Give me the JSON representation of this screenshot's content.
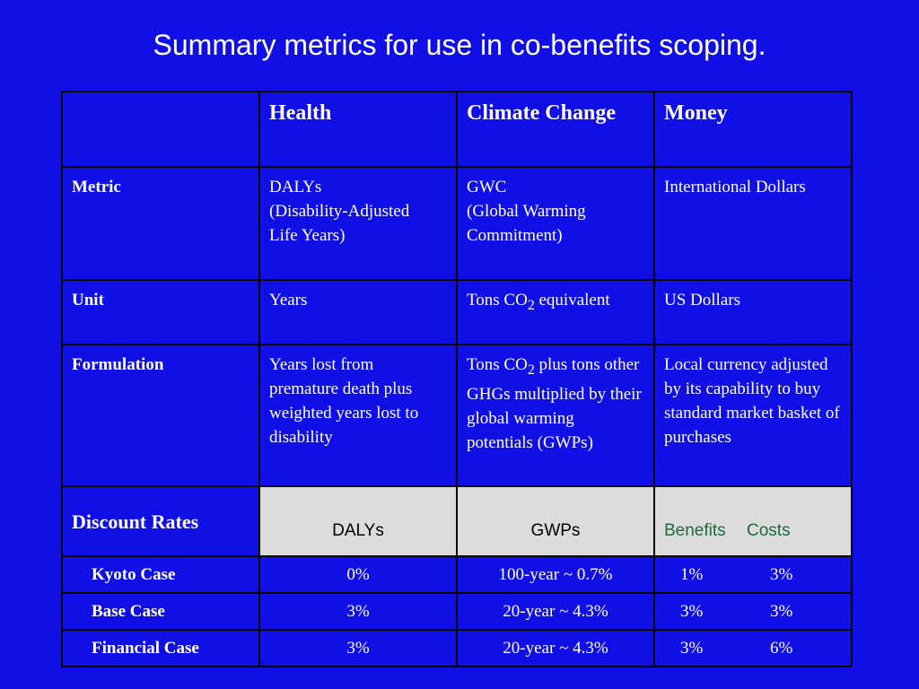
{
  "title": "Summary metrics for use in co-benefits scoping.",
  "table": {
    "headers": [
      "",
      "Health",
      "Climate Change",
      "Money"
    ],
    "metric": {
      "label": "Metric",
      "health": [
        "DALYs",
        "(Disability-Adjusted",
        "Life Years)"
      ],
      "climate": [
        "GWC",
        "(Global Warming",
        "Commitment)"
      ],
      "money": "International Dollars"
    },
    "unit": {
      "label": "Unit",
      "health": "Years",
      "climate_prefix": "Tons CO",
      "climate_sub": "2",
      "climate_suffix": " equivalent",
      "money": "US Dollars"
    },
    "formulation": {
      "label": "Formulation",
      "health": "Years lost from premature death plus weighted years lost to disability",
      "climate_prefix": "Tons CO",
      "climate_sub": "2",
      "climate_suffix": " plus tons other GHGs multiplied by their global warming potentials (GWPs)",
      "money": "Local currency adjusted by its capability to buy standard market basket of purchases"
    },
    "discount": {
      "label": "Discount Rates",
      "health": "DALYs",
      "climate": "GWPs",
      "money_benefits": "Benefits",
      "money_costs": "Costs"
    },
    "cases": [
      {
        "label": "Kyoto Case",
        "health": "0%",
        "climate": "100-year ~ 0.7%",
        "benefits": "1%",
        "costs": "3%"
      },
      {
        "label": "Base Case",
        "health": "3%",
        "climate": "20-year ~ 4.3%",
        "benefits": "3%",
        "costs": "3%"
      },
      {
        "label": "Financial Case",
        "health": "3%",
        "climate": "20-year ~ 4.3%",
        "benefits": "3%",
        "costs": "6%"
      }
    ]
  },
  "colors": {
    "background": "#0f0fe6",
    "gray_cell": "#dcdcdc",
    "money_header_text": "#1c6b3c"
  }
}
